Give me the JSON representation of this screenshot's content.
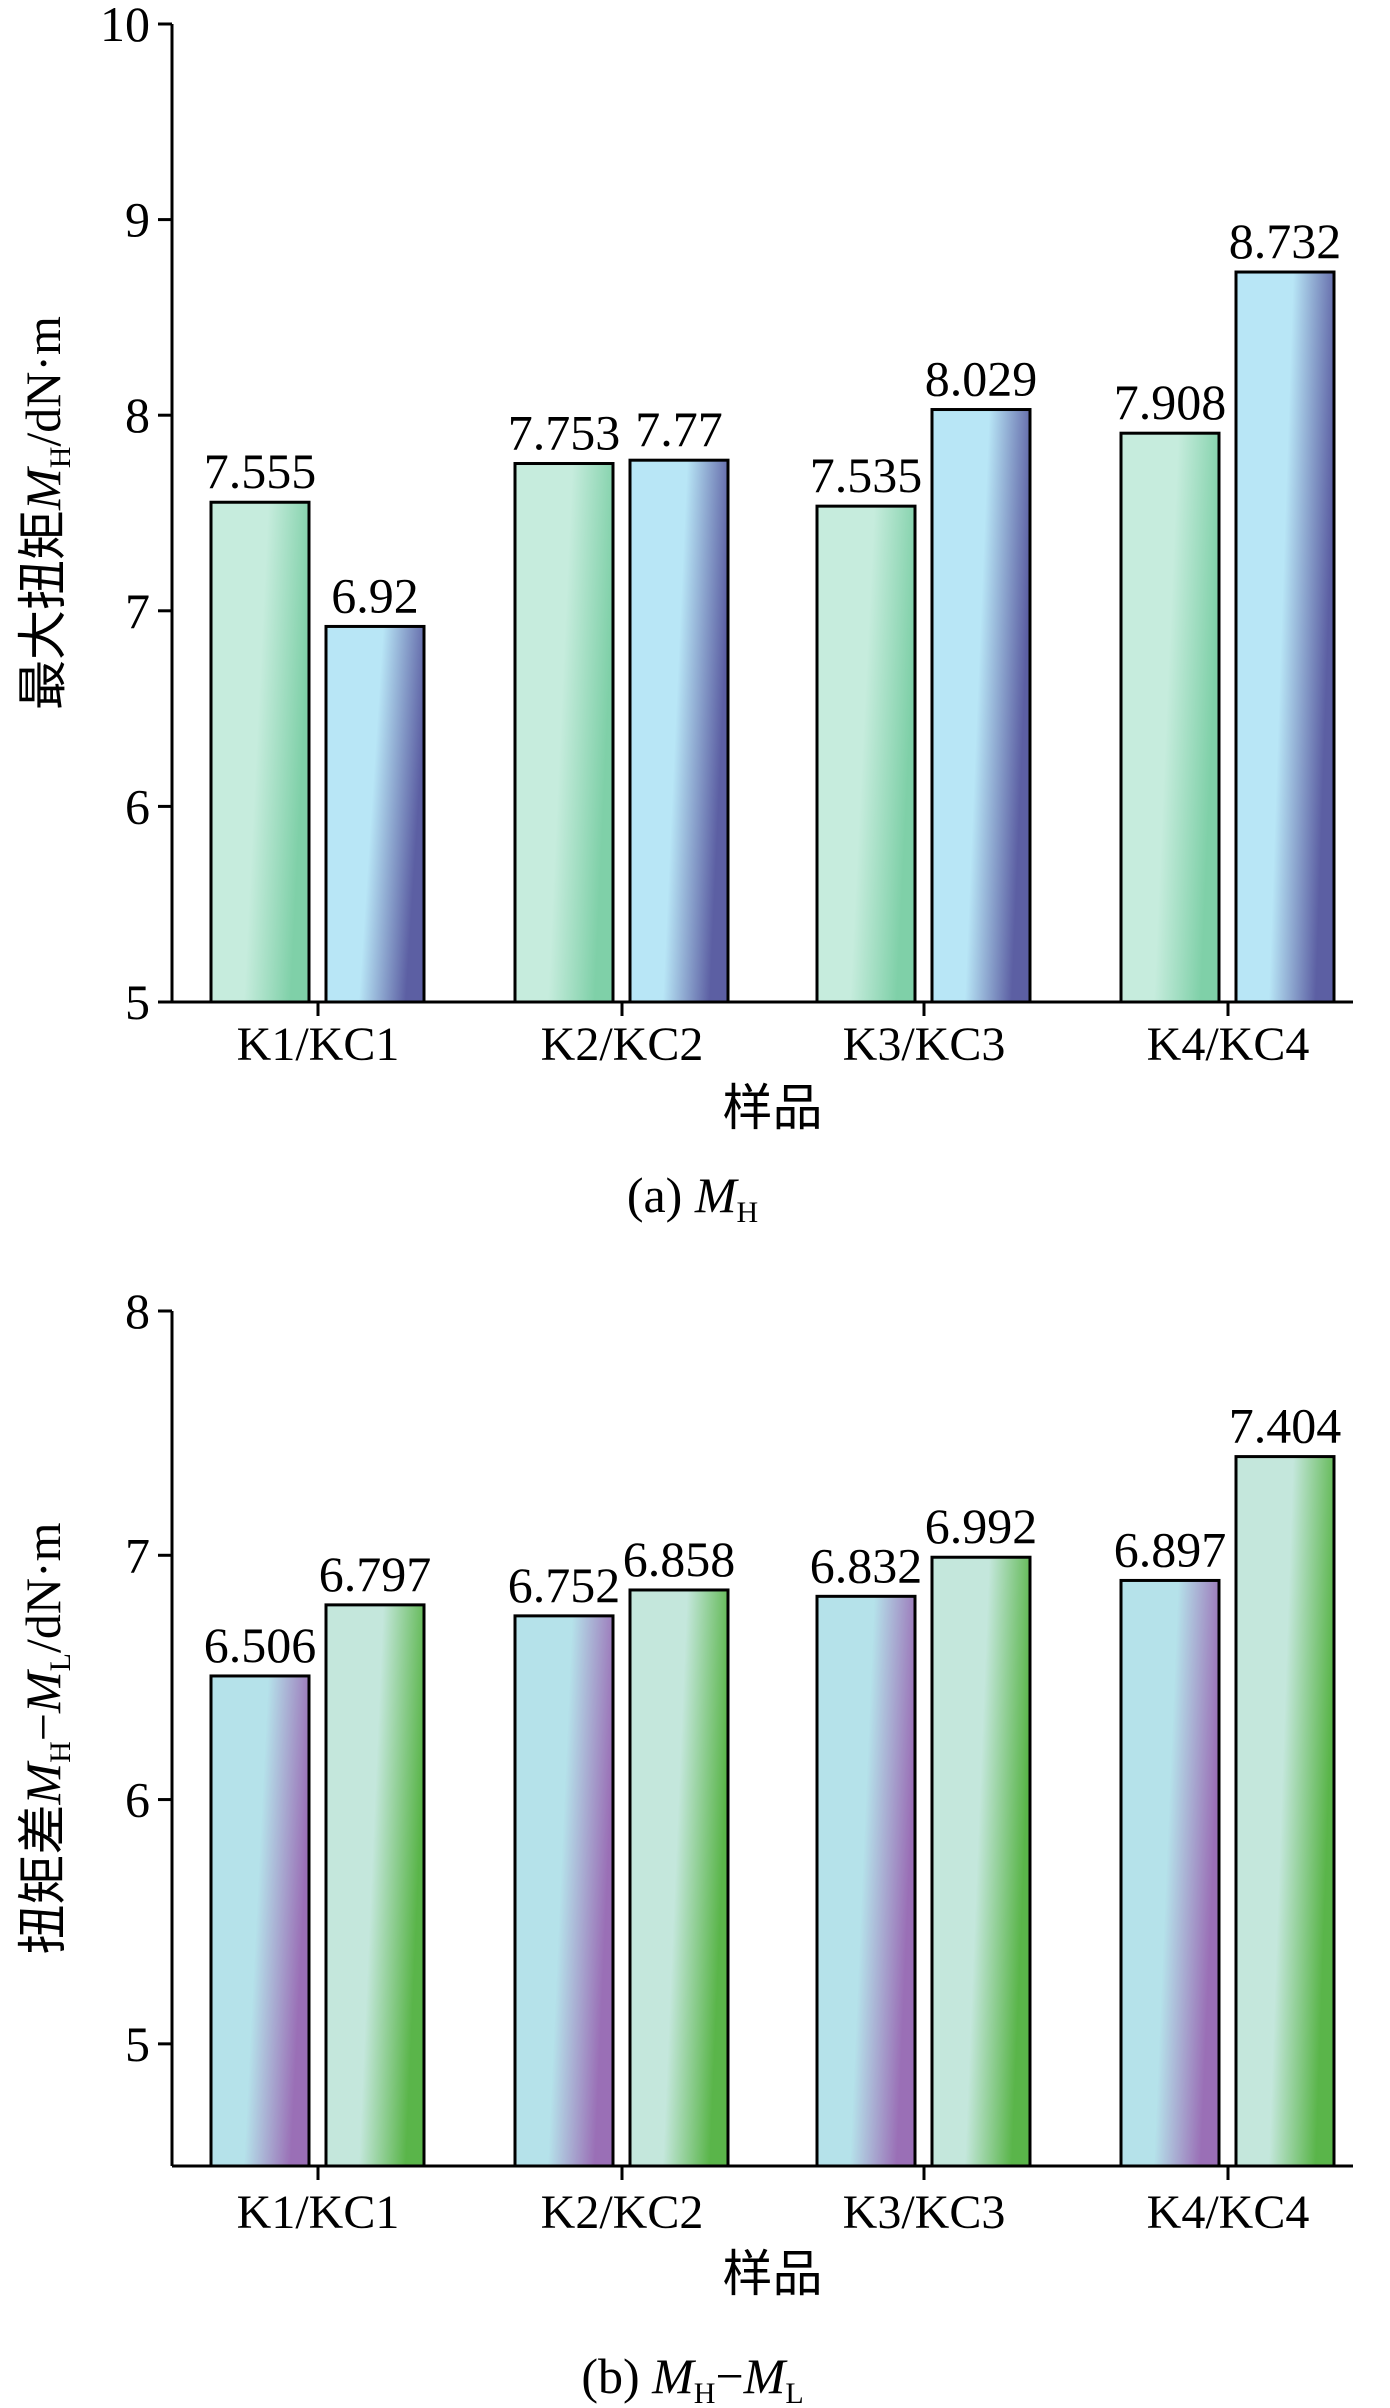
{
  "chart_data": [
    {
      "type": "bar",
      "caption": {
        "prefix": "(a) ",
        "parts": [
          {
            "text": "M",
            "italic": true
          },
          {
            "text": "H",
            "sub": true
          }
        ]
      },
      "xlabel": "样品",
      "ylabel_parts": [
        {
          "text": "最大扭矩"
        },
        {
          "text": "M",
          "italic": true
        },
        {
          "text": "H",
          "sub": true
        },
        {
          "text": "/dN·m"
        }
      ],
      "categories": [
        "K1/KC1",
        "K2/KC2",
        "K3/KC3",
        "K4/KC4"
      ],
      "series": [
        {
          "values": [
            7.555,
            7.753,
            7.535,
            7.908
          ],
          "labels": [
            "7.555",
            "7.753",
            "7.535",
            "7.908"
          ]
        },
        {
          "values": [
            6.92,
            7.77,
            8.029,
            8.732
          ],
          "labels": [
            "6.92",
            "7.77",
            "8.029",
            "8.732"
          ]
        }
      ],
      "yticks": [
        "5",
        "6",
        "7",
        "8",
        "9",
        "10"
      ],
      "ylim": [
        5,
        10
      ],
      "colors": {
        "series1": [
          "#7fd0a8",
          "#c6ecdd"
        ],
        "series2": [
          "#5c5fa3",
          "#b8e6f6"
        ]
      }
    },
    {
      "type": "bar",
      "caption": {
        "prefix": "(b) ",
        "parts": [
          {
            "text": "M",
            "italic": true
          },
          {
            "text": "H",
            "sub": true
          },
          {
            "text": "−"
          },
          {
            "text": "M",
            "italic": true
          },
          {
            "text": "L",
            "sub": true
          }
        ]
      },
      "xlabel": "样品",
      "ylabel_parts": [
        {
          "text": "扭矩差"
        },
        {
          "text": "M",
          "italic": true
        },
        {
          "text": "H",
          "sub": true
        },
        {
          "text": "−"
        },
        {
          "text": "M",
          "italic": true
        },
        {
          "text": "L",
          "sub": true
        },
        {
          "text": "/dN·m"
        }
      ],
      "categories": [
        "K1/KC1",
        "K2/KC2",
        "K3/KC3",
        "K4/KC4"
      ],
      "series": [
        {
          "values": [
            6.506,
            6.752,
            6.832,
            6.897
          ],
          "labels": [
            "6.506",
            "6.752",
            "6.832",
            "6.897"
          ]
        },
        {
          "values": [
            6.797,
            6.858,
            6.992,
            7.404
          ],
          "labels": [
            "6.797",
            "6.858",
            "6.992",
            "7.404"
          ]
        }
      ],
      "yticks": [
        "5",
        "6",
        "7",
        "8"
      ],
      "ylim": [
        4.5,
        8
      ],
      "colors": {
        "series1": [
          "#9a6fb6",
          "#b5e2ea"
        ],
        "series2": [
          "#5ab54a",
          "#c4e7dc"
        ]
      }
    }
  ]
}
